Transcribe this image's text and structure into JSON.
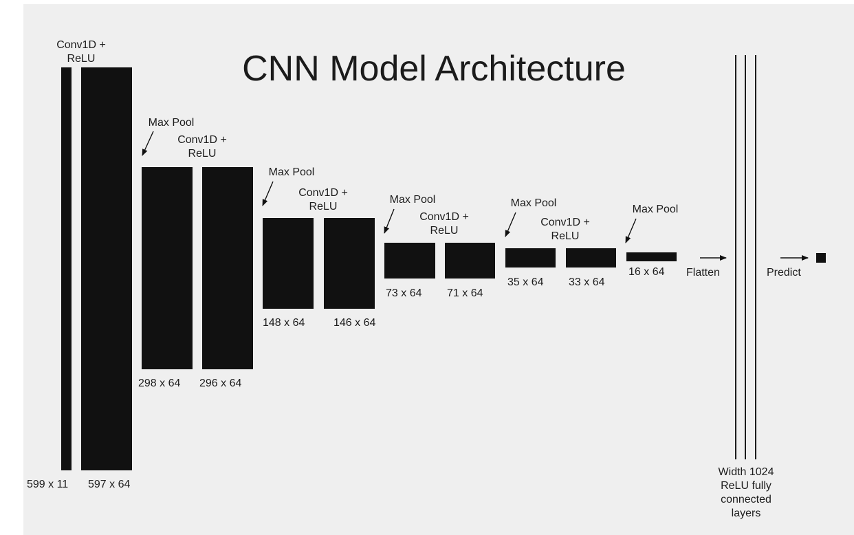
{
  "title": "CNN Model Architecture",
  "layers": [
    {
      "name": "input",
      "dims": "599 x 11"
    },
    {
      "name": "conv1",
      "op": "Conv1D +\nReLU",
      "dims": "597 x 64"
    },
    {
      "name": "pool1",
      "op": "Max Pool",
      "dims": "298 x 64"
    },
    {
      "name": "conv2",
      "op": "Conv1D +\nReLU",
      "dims": "296 x 64"
    },
    {
      "name": "pool2",
      "op": "Max Pool",
      "dims": "148 x 64"
    },
    {
      "name": "conv3",
      "op": "Conv1D +\nReLU",
      "dims": "146 x 64"
    },
    {
      "name": "pool3",
      "op": "Max Pool",
      "dims": "73 x 64"
    },
    {
      "name": "conv4",
      "op": "Conv1D +\nReLU",
      "dims": "71 x 64"
    },
    {
      "name": "pool4",
      "op": "Max Pool",
      "dims": "35 x 64"
    },
    {
      "name": "conv5",
      "op": "Conv1D +\nReLU",
      "dims": "33 x 64"
    },
    {
      "name": "pool5",
      "op": "Max Pool",
      "dims": "16 x 64"
    }
  ],
  "flatten_label": "Flatten",
  "fc_label": "Width 1024\nReLU fully\nconnected\nlayers",
  "predict_label": "Predict",
  "colors": {
    "block": "#111111",
    "background": "#efefef"
  }
}
